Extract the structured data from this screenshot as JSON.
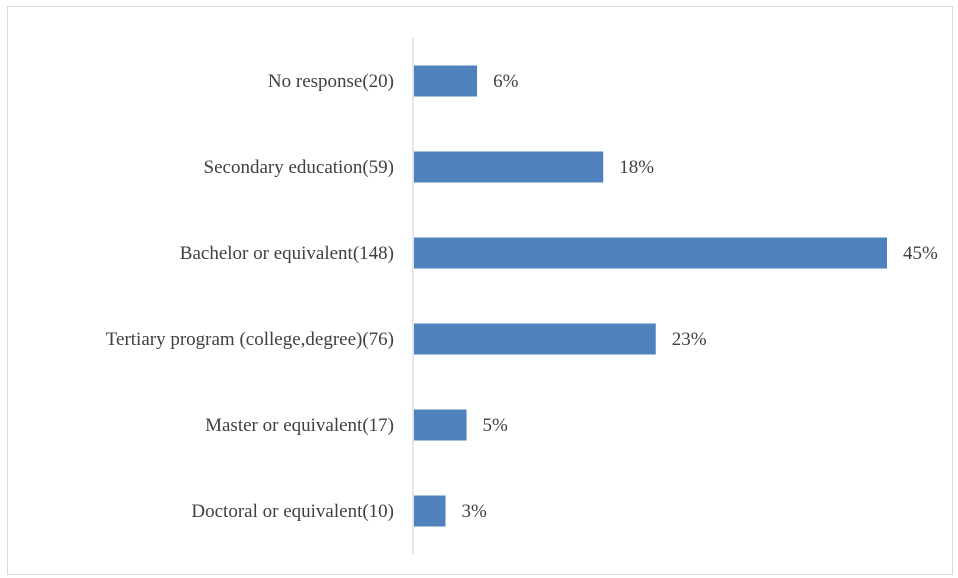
{
  "chart_data": {
    "type": "bar",
    "orientation": "horizontal",
    "categories": [
      "No response(20)",
      "Secondary education(59)",
      "Bachelor or equivalent(148)",
      "Tertiary program (college,degree)(76)",
      "Master or equivalent(17)",
      "Doctoral or equivalent(10)"
    ],
    "values": [
      6,
      18,
      45,
      23,
      5,
      3
    ],
    "value_labels": [
      "6%",
      "18%",
      "45%",
      "23%",
      "5%",
      "3%"
    ],
    "unit": "%",
    "xlim": [
      0,
      45
    ],
    "grid": false,
    "legend": "none",
    "bar_color": "#4f81bd",
    "axis_color": "#d9d9d9",
    "text_color": "#404040"
  }
}
